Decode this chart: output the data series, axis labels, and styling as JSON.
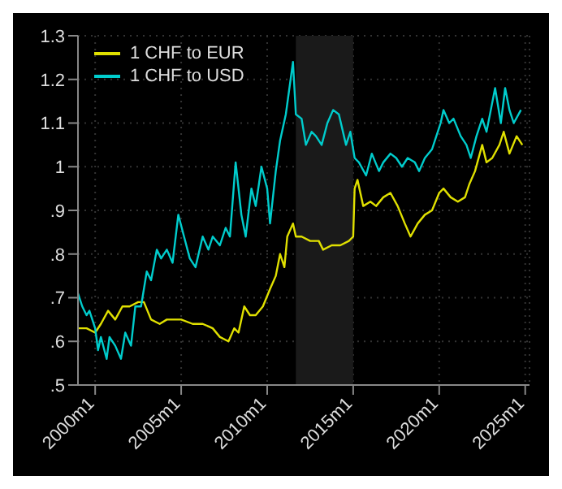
{
  "chart_data": {
    "type": "line",
    "series": [
      {
        "name": "1 CHF to EUR",
        "color": "#e0e000",
        "x": [
          "1999-01",
          "1999-07",
          "2000-01",
          "2000-05",
          "2000-10",
          "2001-03",
          "2001-08",
          "2002-01",
          "2002-07",
          "2002-11",
          "2003-04",
          "2003-10",
          "2004-03",
          "2004-08",
          "2005-01",
          "2005-09",
          "2006-04",
          "2006-11",
          "2007-04",
          "2007-10",
          "2008-02",
          "2008-05",
          "2008-09",
          "2009-01",
          "2009-05",
          "2009-10",
          "2010-03",
          "2010-07",
          "2010-10",
          "2011-01",
          "2011-03",
          "2011-07",
          "2011-09",
          "2012-01",
          "2012-07",
          "2013-01",
          "2013-04",
          "2013-10",
          "2014-04",
          "2014-10",
          "2015-01",
          "2015-02",
          "2015-04",
          "2015-08",
          "2016-01",
          "2016-05",
          "2016-10",
          "2017-03",
          "2017-08",
          "2018-01",
          "2018-05",
          "2018-10",
          "2019-03",
          "2019-08",
          "2020-01",
          "2020-04",
          "2020-09",
          "2021-02",
          "2021-07",
          "2021-10",
          "2022-02",
          "2022-07",
          "2022-10",
          "2023-02",
          "2023-07",
          "2023-10",
          "2024-02",
          "2024-07",
          "2024-11"
        ],
        "values": [
          0.63,
          0.63,
          0.62,
          0.64,
          0.67,
          0.65,
          0.68,
          0.68,
          0.69,
          0.69,
          0.65,
          0.64,
          0.65,
          0.65,
          0.65,
          0.64,
          0.64,
          0.63,
          0.61,
          0.6,
          0.63,
          0.62,
          0.68,
          0.66,
          0.66,
          0.68,
          0.72,
          0.75,
          0.8,
          0.77,
          0.84,
          0.87,
          0.84,
          0.84,
          0.83,
          0.83,
          0.81,
          0.82,
          0.82,
          0.83,
          0.84,
          0.95,
          0.97,
          0.91,
          0.92,
          0.91,
          0.93,
          0.94,
          0.91,
          0.87,
          0.84,
          0.87,
          0.89,
          0.9,
          0.94,
          0.95,
          0.93,
          0.92,
          0.93,
          0.96,
          0.99,
          1.05,
          1.01,
          1.02,
          1.05,
          1.08,
          1.03,
          1.07,
          1.05
        ]
      },
      {
        "name": "1 CHF to USD",
        "color": "#00cccc",
        "x": [
          "1999-01",
          "1999-04",
          "1999-07",
          "1999-09",
          "2000-01",
          "2000-03",
          "2000-05",
          "2000-09",
          "2000-11",
          "2001-03",
          "2001-07",
          "2001-10",
          "2002-02",
          "2002-05",
          "2002-09",
          "2003-01",
          "2003-04",
          "2003-08",
          "2003-11",
          "2004-03",
          "2004-07",
          "2004-11",
          "2005-03",
          "2005-07",
          "2005-11",
          "2006-04",
          "2006-08",
          "2006-11",
          "2007-04",
          "2007-08",
          "2007-11",
          "2008-03",
          "2008-07",
          "2008-10",
          "2009-02",
          "2009-05",
          "2009-09",
          "2010-01",
          "2010-03",
          "2010-07",
          "2010-10",
          "2011-02",
          "2011-07",
          "2011-09",
          "2012-01",
          "2012-04",
          "2012-08",
          "2012-11",
          "2013-03",
          "2013-07",
          "2013-11",
          "2014-03",
          "2014-08",
          "2014-11",
          "2015-02",
          "2015-05",
          "2015-10",
          "2016-02",
          "2016-07",
          "2016-10",
          "2017-03",
          "2017-07",
          "2017-11",
          "2018-03",
          "2018-08",
          "2018-11",
          "2019-03",
          "2019-08",
          "2019-11",
          "2020-02",
          "2020-04",
          "2020-08",
          "2020-11",
          "2021-04",
          "2021-08",
          "2021-11",
          "2022-03",
          "2022-07",
          "2022-10",
          "2023-01",
          "2023-04",
          "2023-08",
          "2023-11",
          "2024-02",
          "2024-05",
          "2024-10"
        ],
        "values": [
          0.71,
          0.68,
          0.66,
          0.67,
          0.63,
          0.58,
          0.61,
          0.56,
          0.61,
          0.59,
          0.56,
          0.62,
          0.59,
          0.68,
          0.68,
          0.76,
          0.74,
          0.81,
          0.79,
          0.81,
          0.78,
          0.89,
          0.84,
          0.79,
          0.77,
          0.84,
          0.81,
          0.84,
          0.82,
          0.86,
          0.84,
          1.01,
          0.89,
          0.84,
          0.95,
          0.91,
          1.0,
          0.95,
          0.87,
          0.99,
          1.06,
          1.12,
          1.24,
          1.12,
          1.11,
          1.05,
          1.08,
          1.07,
          1.05,
          1.1,
          1.13,
          1.12,
          1.05,
          1.08,
          1.02,
          1.01,
          0.98,
          1.03,
          0.99,
          1.01,
          1.03,
          1.02,
          1.0,
          1.02,
          1.01,
          0.99,
          1.02,
          1.04,
          1.07,
          1.1,
          1.13,
          1.1,
          1.11,
          1.07,
          1.05,
          1.02,
          1.07,
          1.11,
          1.08,
          1.13,
          1.18,
          1.1,
          1.18,
          1.13,
          1.1,
          1.13
        ]
      }
    ],
    "xlim": [
      "1999-01",
      "2025-04"
    ],
    "xticks": [
      {
        "value": "2000-01",
        "label": "2000m1"
      },
      {
        "value": "2005-01",
        "label": "2005m1"
      },
      {
        "value": "2010-01",
        "label": "2010m1"
      },
      {
        "value": "2015-01",
        "label": "2015m1"
      },
      {
        "value": "2020-01",
        "label": "2020m1"
      },
      {
        "value": "2025-01",
        "label": "2025m1"
      }
    ],
    "ylim": [
      0.5,
      1.3
    ],
    "yticks": [
      {
        "value": 0.5,
        "label": ".5"
      },
      {
        "value": 0.6,
        "label": ".6"
      },
      {
        "value": 0.7,
        "label": ".7"
      },
      {
        "value": 0.8,
        "label": ".8"
      },
      {
        "value": 0.9,
        "label": ".9"
      },
      1,
      1.1,
      1.2,
      1.3
    ],
    "bands": [
      {
        "axis": "x",
        "from": "2011-09",
        "to": "2015-01",
        "color": "#1a1a1a"
      }
    ],
    "grid": true,
    "legend": "top left",
    "marker": "none",
    "line_style": "solid"
  }
}
